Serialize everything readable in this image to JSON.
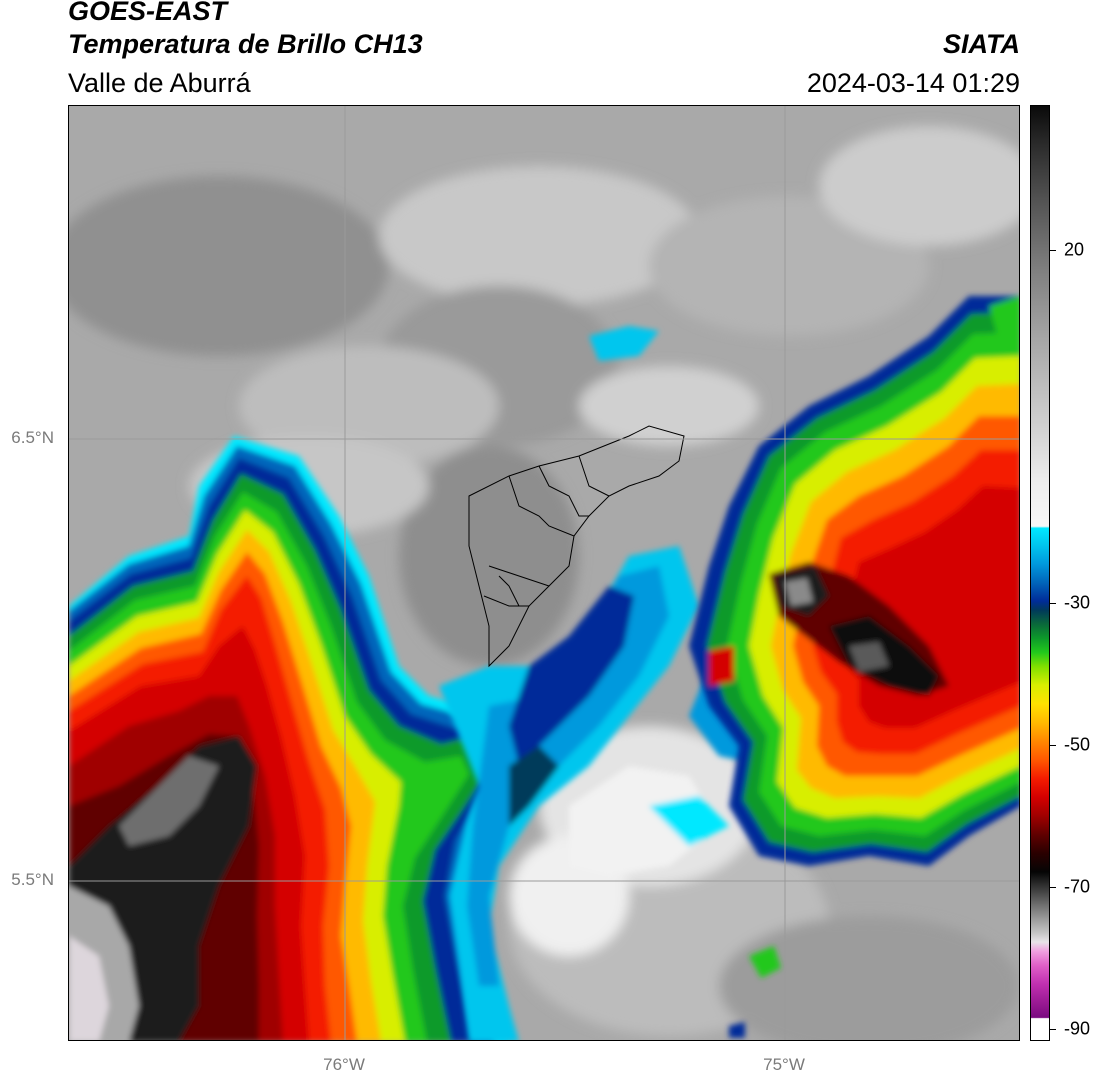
{
  "header": {
    "line1": "GOES-EAST",
    "line2": "Temperatura de Brillo CH13",
    "line3": "Valle de Aburrá",
    "org": "SIATA",
    "datetime": "2024-03-14 01:29"
  },
  "map": {
    "lat_labels": [
      "6.5°N",
      "5.5°N"
    ],
    "lon_labels": [
      "76°W",
      "75°W"
    ],
    "gridlines": true,
    "gridline_color": "#9a9a9a",
    "boundary_region": "Valle de Aburrá municipalities outline"
  },
  "colorbar": {
    "ticks": [
      "20",
      "-30",
      "-50",
      "-70",
      "-90"
    ],
    "colors": {
      "warm_top": "#0a0a0a",
      "clear": "#f7f7f7",
      "cyan": "#00e8ff",
      "blue": "#002c99",
      "green": "#22c81c",
      "yellow": "#ffe200",
      "orange": "#ff8800",
      "red": "#d40000",
      "dark_red": "#600000",
      "magenta": "#c030b0"
    }
  }
}
